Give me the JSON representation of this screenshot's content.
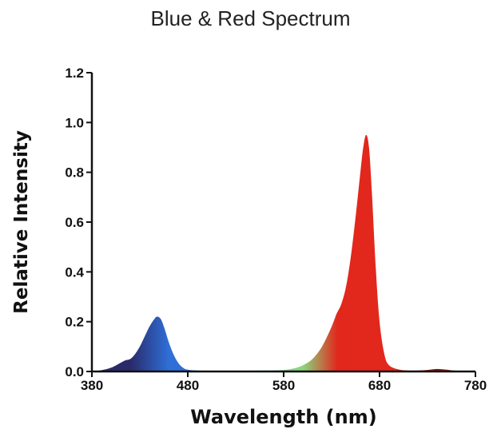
{
  "chart_data": {
    "type": "area",
    "title": "Blue & Red Spectrum",
    "xlabel": "Wavelength (nm)",
    "ylabel": "Relative Intensity",
    "xlim": [
      380,
      780
    ],
    "ylim": [
      0,
      1.2
    ],
    "x_ticks": [
      "380",
      "480",
      "580",
      "680",
      "780"
    ],
    "y_ticks": [
      "0.0",
      "0.2",
      "0.4",
      "0.6",
      "0.8",
      "1.0",
      "1.2"
    ],
    "grid": false,
    "legend": "none",
    "series": [
      {
        "x": [
          380,
          390,
          400,
          410,
          415,
          420,
          425,
          430,
          435,
          440,
          445,
          448,
          452,
          456,
          460,
          465,
          470,
          475,
          480,
          490,
          500,
          520,
          540,
          560,
          580,
          590,
          600,
          610,
          620,
          630,
          635,
          640,
          645,
          650,
          655,
          660,
          663,
          666,
          669,
          672,
          676,
          680,
          685,
          690,
          700,
          710,
          720,
          730,
          740,
          750,
          760,
          780
        ],
        "y": [
          0.0,
          0.005,
          0.015,
          0.035,
          0.045,
          0.05,
          0.07,
          0.1,
          0.14,
          0.18,
          0.21,
          0.22,
          0.21,
          0.17,
          0.12,
          0.07,
          0.035,
          0.015,
          0.007,
          0.004,
          0.003,
          0.003,
          0.003,
          0.004,
          0.006,
          0.012,
          0.025,
          0.05,
          0.1,
          0.18,
          0.23,
          0.27,
          0.34,
          0.46,
          0.62,
          0.8,
          0.9,
          0.95,
          0.9,
          0.72,
          0.42,
          0.2,
          0.07,
          0.025,
          0.008,
          0.004,
          0.004,
          0.006,
          0.01,
          0.007,
          0.003,
          0.0
        ]
      }
    ]
  },
  "colors": {
    "violet": "#2a2a6a",
    "blue": "#2f6fd6",
    "cyan": "#5fd3ee",
    "green": "#8bd67a",
    "red": "#e2271d",
    "dark_red": "#8e1212",
    "axis": "#111111"
  }
}
